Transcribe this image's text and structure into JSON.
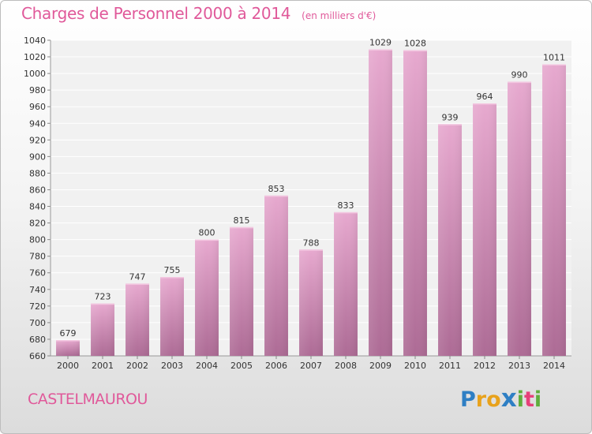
{
  "header": {
    "title": "Charges de Personnel 2000 à 2014",
    "subtitle": "(en milliers d'€)"
  },
  "footer": {
    "commune": "CASTELMAUROU",
    "logo": {
      "text": "Proxiti",
      "letters": [
        {
          "char": "P",
          "color": "#2e7fc4"
        },
        {
          "char": "r",
          "color": "#e8a21c"
        },
        {
          "char": "o",
          "color": "#e8a21c"
        },
        {
          "char": "x",
          "color": "#2e7fc4"
        },
        {
          "char": "i",
          "color": "#5fae3c"
        },
        {
          "char": "t",
          "color": "#e6407a"
        },
        {
          "char": "i",
          "color": "#5fae3c"
        }
      ]
    }
  },
  "chart_data": {
    "type": "bar",
    "title": "Charges de Personnel 2000 à 2014",
    "subtitle": "(en milliers d'€)",
    "categories": [
      "2000",
      "2001",
      "2002",
      "2003",
      "2004",
      "2005",
      "2006",
      "2007",
      "2008",
      "2009",
      "2010",
      "2011",
      "2012",
      "2013",
      "2014"
    ],
    "values": [
      679,
      723,
      747,
      755,
      800,
      815,
      853,
      788,
      833,
      1029,
      1028,
      939,
      964,
      990,
      1011
    ],
    "ylim": [
      660,
      1040
    ],
    "yticks": [
      660,
      680,
      700,
      720,
      740,
      760,
      780,
      800,
      820,
      840,
      860,
      880,
      900,
      920,
      940,
      960,
      980,
      1000,
      1020,
      1040
    ],
    "grid": true,
    "bar_color": "#dc9ec4",
    "bar_color_dark": "#b06c98"
  }
}
